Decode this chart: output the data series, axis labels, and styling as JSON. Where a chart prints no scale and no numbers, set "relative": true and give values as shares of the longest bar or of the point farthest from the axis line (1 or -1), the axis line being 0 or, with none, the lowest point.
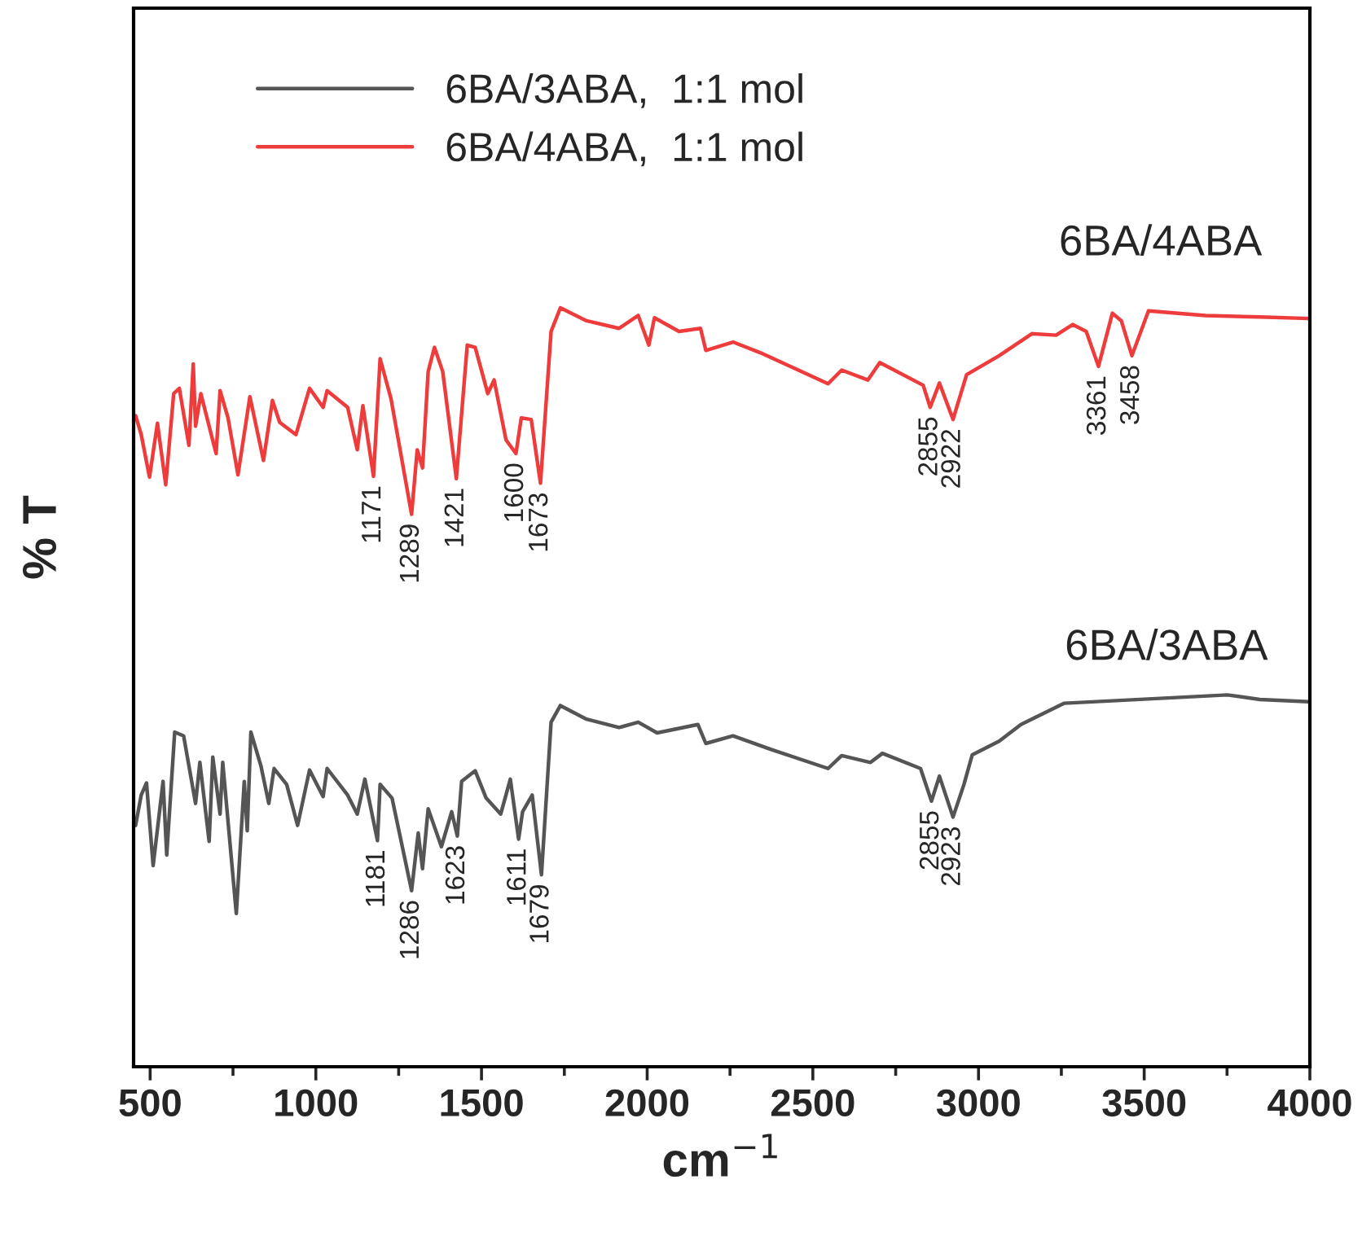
{
  "chart_data": {
    "type": "line",
    "relative": true,
    "xlabel": "cm$^{−1}$",
    "ylabel": "% T",
    "xlim": [
      450,
      4000
    ],
    "xticks": [
      500,
      {
        "value": 750,
        "label": null
      },
      1000,
      {
        "value": 1250,
        "label": null
      },
      1500,
      {
        "value": 1750,
        "label": null
      },
      2000,
      {
        "value": 2250,
        "label": null
      },
      2500,
      {
        "value": 2750,
        "label": null
      },
      3000,
      {
        "value": 3250,
        "label": null
      },
      3500,
      {
        "value": 3750,
        "label": null
      },
      4000
    ],
    "tick_labels": "x",
    "grid": false,
    "legend": "top left",
    "marker": "none",
    "line_style": "solid",
    "series": [
      {
        "name": "6BA/3ABA,  1:1 mol",
        "color": "#555555",
        "x": [
          456,
          473,
          489,
          509,
          539,
          550,
          574,
          601,
          637,
          650,
          678,
          689,
          711,
          719,
          760,
          784,
          793,
          804,
          834,
          858,
          874,
          912,
          945,
          981,
          1022,
          1034,
          1096,
          1125,
          1148,
          1186,
          1194,
          1230,
          1289,
          1309,
          1322,
          1339,
          1379,
          1410,
          1427,
          1440,
          1481,
          1514,
          1558,
          1587,
          1612,
          1624,
          1653,
          1681,
          1710,
          1738,
          1817,
          1915,
          1973,
          2030,
          2153,
          2177,
          2259,
          2374,
          2546,
          2587,
          2674,
          2710,
          2825,
          2858,
          2882,
          2923,
          2956,
          2981,
          3062,
          3128,
          3259,
          3440,
          3751,
          3849,
          3997
        ],
        "values": [
          0.318,
          0.358,
          0.374,
          0.265,
          0.376,
          0.279,
          0.441,
          0.436,
          0.347,
          0.401,
          0.297,
          0.408,
          0.333,
          0.401,
          0.202,
          0.376,
          0.311,
          0.441,
          0.397,
          0.347,
          0.393,
          0.372,
          0.318,
          0.391,
          0.356,
          0.393,
          0.358,
          0.333,
          0.379,
          0.298,
          0.372,
          0.354,
          0.232,
          0.308,
          0.261,
          0.34,
          0.29,
          0.336,
          0.304,
          0.376,
          0.39,
          0.354,
          0.333,
          0.379,
          0.3,
          0.336,
          0.358,
          0.253,
          0.454,
          0.476,
          0.458,
          0.447,
          0.454,
          0.44,
          0.451,
          0.426,
          0.436,
          0.418,
          0.393,
          0.41,
          0.401,
          0.413,
          0.393,
          0.35,
          0.383,
          0.329,
          0.372,
          0.411,
          0.429,
          0.451,
          0.479,
          0.483,
          0.49,
          0.484,
          0.481
        ]
      },
      {
        "name": "6BA/4ABA,  1:1 mol",
        "color": "#ee3b3b",
        "x": [
          456,
          473,
          498,
          522,
          547,
          571,
          588,
          617,
          630,
          637,
          653,
          699,
          711,
          735,
          765,
          801,
          842,
          869,
          891,
          940,
          981,
          1022,
          1034,
          1096,
          1125,
          1142,
          1174,
          1194,
          1227,
          1289,
          1306,
          1322,
          1339,
          1358,
          1383,
          1424,
          1457,
          1481,
          1519,
          1538,
          1574,
          1604,
          1620,
          1650,
          1678,
          1710,
          1738,
          1817,
          1915,
          1973,
          2005,
          2022,
          2096,
          2161,
          2177,
          2259,
          2341,
          2546,
          2587,
          2666,
          2702,
          2833,
          2854,
          2882,
          2923,
          2964,
          3062,
          3161,
          3234,
          3284,
          3325,
          3362,
          3404,
          3431,
          3463,
          3513,
          3685,
          3849,
          3997
        ],
        "values": [
          0.858,
          0.833,
          0.777,
          0.848,
          0.767,
          0.887,
          0.894,
          0.819,
          0.926,
          0.844,
          0.887,
          0.808,
          0.891,
          0.855,
          0.78,
          0.883,
          0.799,
          0.878,
          0.849,
          0.833,
          0.894,
          0.869,
          0.891,
          0.869,
          0.813,
          0.871,
          0.778,
          0.933,
          0.88,
          0.728,
          0.813,
          0.789,
          0.916,
          0.948,
          0.916,
          0.775,
          0.951,
          0.948,
          0.887,
          0.905,
          0.826,
          0.808,
          0.855,
          0.853,
          0.769,
          0.969,
          1.0,
          0.983,
          0.973,
          0.99,
          0.951,
          0.987,
          0.969,
          0.973,
          0.944,
          0.955,
          0.941,
          0.9,
          0.918,
          0.905,
          0.928,
          0.898,
          0.869,
          0.901,
          0.853,
          0.912,
          0.937,
          0.966,
          0.964,
          0.978,
          0.969,
          0.923,
          0.993,
          0.983,
          0.937,
          0.996,
          0.99,
          0.988,
          0.986
        ]
      }
    ],
    "annotations": [
      "6BA/4ABA",
      "6BA/3ABA",
      {
        "text": "1171",
        "x": 1174,
        "y": 0.778
      },
      {
        "text": "1289",
        "x": 1289,
        "y": 0.728
      },
      {
        "text": "1421",
        "x": 1424,
        "y": 0.775
      },
      {
        "text": "1600",
        "x": 1604,
        "y": 0.808
      },
      {
        "text": "1673",
        "x": 1678,
        "y": 0.769
      },
      {
        "text": "2855",
        "x": 2854,
        "y": 0.869
      },
      {
        "text": "2922",
        "x": 2923,
        "y": 0.853
      },
      {
        "text": "3361",
        "x": 3362,
        "y": 0.923
      },
      {
        "text": "3458",
        "x": 3463,
        "y": 0.937
      },
      {
        "text": "1181",
        "x": 1186,
        "y": 0.298
      },
      {
        "text": "1286",
        "x": 1289,
        "y": 0.232
      },
      {
        "text": "1623",
        "x": 1427,
        "y": 0.304
      },
      {
        "text": "1611",
        "x": 1612,
        "y": 0.3
      },
      {
        "text": "1679",
        "x": 1681,
        "y": 0.253
      },
      {
        "text": "2855",
        "x": 2858,
        "y": 0.35
      },
      {
        "text": "2923",
        "x": 2923,
        "y": 0.329
      }
    ]
  }
}
